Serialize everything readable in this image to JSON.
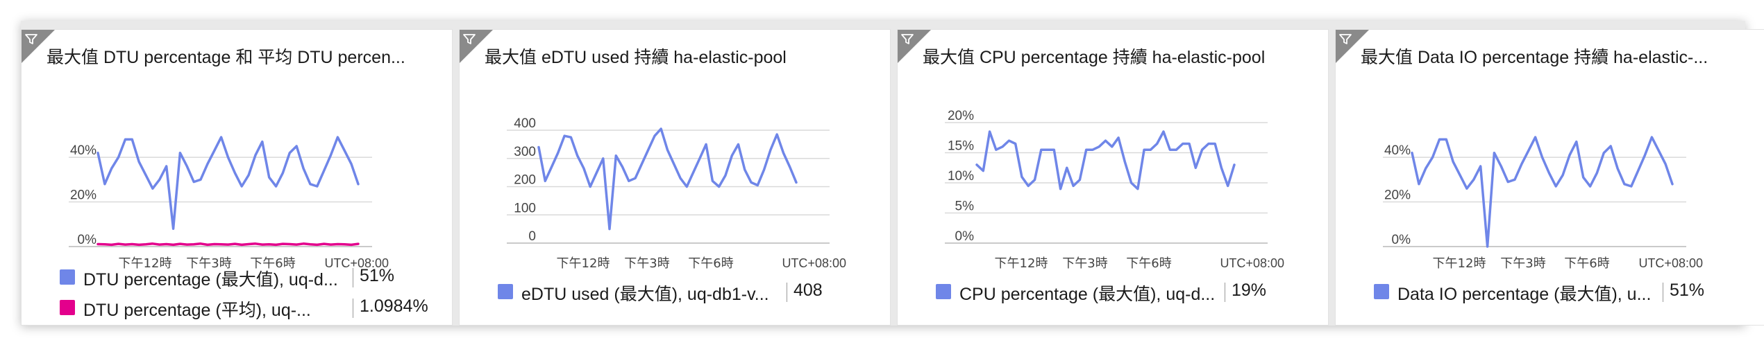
{
  "tiles": [
    {
      "title": "最大值 DTU percentage 和 平均 DTU percen...",
      "legend": [
        {
          "label": "DTU percentage (最大值), uq-d...",
          "value": "51%",
          "color": "#6f86e8"
        },
        {
          "label": "DTU percentage (平均), uq-...",
          "value": "1.0984%",
          "color": "#e3008c"
        }
      ]
    },
    {
      "title": "最大值 eDTU used 持續 ha-elastic-pool",
      "legend": [
        {
          "label": "eDTU used (最大值), uq-db1-v...",
          "value": "408",
          "color": "#6f86e8"
        }
      ]
    },
    {
      "title": "最大值 CPU percentage 持續 ha-elastic-pool",
      "legend": [
        {
          "label": "CPU percentage (最大值), uq-d...",
          "value": "19%",
          "color": "#6f86e8"
        }
      ]
    },
    {
      "title": "最大值 Data IO percentage 持續 ha-elastic-...",
      "legend": [
        {
          "label": "Data IO percentage (最大值), u...",
          "value": "51%",
          "color": "#6f86e8"
        }
      ]
    }
  ],
  "chart_data": [
    {
      "type": "line",
      "title": "最大值 DTU percentage 和 平均 DTU percen...",
      "ylim": [
        0,
        45
      ],
      "yticks": [
        0,
        20,
        40
      ],
      "ytick_labels": [
        "0%",
        "20%",
        "40%"
      ],
      "x_ticks": [
        "下午12時",
        "下午3時",
        "下午6時"
      ],
      "x_unit": "UTC+08:00",
      "series": [
        {
          "name": "DTU percentage (最大值), uq-d...",
          "color": "#6f86e8",
          "values": [
            42,
            28,
            35,
            40,
            48,
            48,
            38,
            32,
            26,
            30,
            36,
            8,
            42,
            36,
            29,
            30,
            37,
            43,
            49,
            40,
            33,
            27,
            32,
            41,
            47,
            31,
            27,
            33,
            42,
            45,
            35,
            28,
            27,
            34,
            41,
            49,
            43,
            37,
            28
          ]
        },
        {
          "name": "DTU percentage (平均), uq-...",
          "color": "#e3008c",
          "values": [
            1.1,
            1.0,
            0.8,
            1.2,
            0.9,
            1.1,
            0.8,
            1.0,
            1.3,
            0.9,
            1.1,
            0.8,
            1.2,
            0.9,
            1.0,
            1.3,
            0.8,
            1.1,
            1.0,
            0.9,
            1.2,
            0.8,
            1.1,
            1.3,
            0.9,
            1.0,
            0.8,
            1.2,
            1.1,
            0.9,
            1.3,
            1.0,
            0.8,
            1.2,
            0.9,
            1.1,
            1.0,
            0.8,
            1.2
          ]
        }
      ]
    },
    {
      "type": "line",
      "title": "最大值 eDTU used 持續 ha-elastic-pool",
      "ylim": [
        0,
        400
      ],
      "yticks": [
        0,
        100,
        200,
        300,
        400
      ],
      "ytick_labels": [
        "0",
        "100",
        "200",
        "300",
        "400"
      ],
      "x_ticks": [
        "下午12時",
        "下午3時",
        "下午6時"
      ],
      "x_unit": "UTC+08:00",
      "series": [
        {
          "name": "eDTU used (最大值), uq-db1-v...",
          "color": "#6f86e8",
          "values": [
            340,
            220,
            270,
            320,
            380,
            375,
            310,
            265,
            200,
            250,
            300,
            50,
            310,
            270,
            220,
            230,
            280,
            330,
            380,
            405,
            330,
            280,
            230,
            200,
            250,
            300,
            350,
            220,
            200,
            240,
            310,
            350,
            260,
            215,
            205,
            260,
            330,
            385,
            320,
            270,
            215
          ]
        }
      ]
    },
    {
      "type": "line",
      "title": "最大值 CPU percentage 持續 ha-elastic-pool",
      "ylim": [
        0,
        20
      ],
      "yticks": [
        0,
        5,
        10,
        15,
        20
      ],
      "ytick_labels": [
        "0%",
        "5%",
        "10%",
        "15%",
        "20%"
      ],
      "x_ticks": [
        "下午12時",
        "下午3時",
        "下午6時"
      ],
      "x_unit": "UTC+08:00",
      "series": [
        {
          "name": "CPU percentage (最大值), uq-d...",
          "color": "#6f86e8",
          "values": [
            13,
            12,
            18.5,
            15.5,
            16,
            17,
            16.5,
            11,
            9.5,
            10.5,
            15.5,
            15.5,
            15.5,
            9,
            12.5,
            9.5,
            10.5,
            15.5,
            15.5,
            16,
            17,
            16,
            17.5,
            13.5,
            10,
            9,
            15.5,
            15.5,
            16.5,
            18.5,
            15.5,
            15.5,
            16.5,
            16.5,
            12.5,
            15.5,
            16.5,
            16.5,
            12.5,
            9.5,
            13
          ]
        }
      ]
    },
    {
      "type": "line",
      "title": "最大值 Data IO percentage 持續 ha-elastic-...",
      "ylim": [
        0,
        45
      ],
      "yticks": [
        0,
        20,
        40
      ],
      "ytick_labels": [
        "0%",
        "20%",
        "40%"
      ],
      "x_ticks": [
        "下午12時",
        "下午3時",
        "下午6時"
      ],
      "x_unit": "UTC+08:00",
      "series": [
        {
          "name": "Data IO percentage (最大值), u...",
          "color": "#6f86e8",
          "values": [
            42,
            28,
            35,
            40,
            48,
            48,
            38,
            32,
            26,
            30,
            36,
            0,
            42,
            36,
            29,
            30,
            37,
            43,
            49,
            40,
            33,
            27,
            32,
            41,
            47,
            31,
            27,
            33,
            42,
            45,
            35,
            28,
            27,
            34,
            41,
            49,
            43,
            37,
            28
          ]
        }
      ]
    }
  ]
}
